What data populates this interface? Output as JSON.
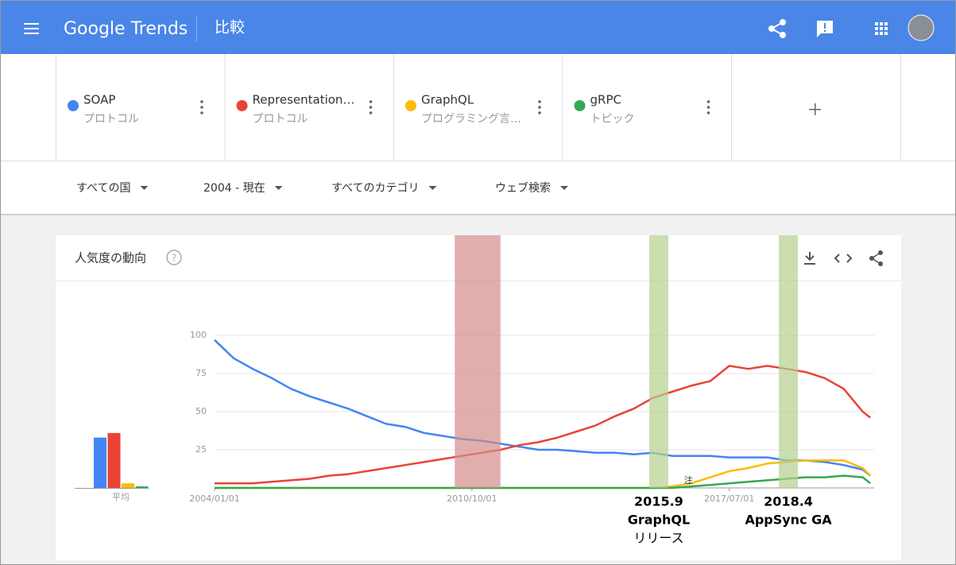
{
  "header": {
    "logo": "Google Trends",
    "page": "比較"
  },
  "term_types": [
    "プロトコル",
    "プロトコル",
    "プログラミング言…",
    "トピック"
  ],
  "filters": [
    "すべての国",
    "2004 - 現在",
    "すべてのカテゴリ",
    "ウェブ検索"
  ],
  "card_title": "人気度の動向",
  "chart_data": {
    "type": "line",
    "x": [
      2004,
      2004.5,
      2005,
      2005.5,
      2006,
      2006.5,
      2007,
      2007.5,
      2008,
      2008.5,
      2009,
      2009.5,
      2010,
      2010.5,
      2011,
      2011.5,
      2012,
      2012.5,
      2013,
      2013.5,
      2014,
      2014.5,
      2015,
      2015.5,
      2016,
      2016.5,
      2017,
      2017.5,
      2018,
      2018.5,
      2019,
      2019.5,
      2020,
      2020.5,
      2021,
      2021.2
    ],
    "series": [
      {
        "name": "SOAP",
        "color": "#4285f4",
        "values": [
          97,
          85,
          78,
          72,
          65,
          60,
          56,
          52,
          47,
          42,
          40,
          36,
          34,
          32,
          31,
          29,
          27,
          25,
          25,
          24,
          23,
          23,
          22,
          23,
          21,
          21,
          21,
          20,
          20,
          20,
          18,
          18,
          17,
          15,
          12,
          8
        ]
      },
      {
        "name": "Representation…",
        "color": "#ea4335",
        "values": [
          3,
          3,
          3,
          4,
          5,
          6,
          8,
          9,
          11,
          13,
          15,
          17,
          19,
          21,
          23,
          25,
          28,
          30,
          33,
          37,
          41,
          47,
          52,
          59,
          63,
          67,
          70,
          80,
          78,
          80,
          78,
          76,
          72,
          65,
          50,
          46
        ]
      },
      {
        "name": "GraphQL",
        "color": "#fbbc04",
        "values": [
          0,
          0,
          0,
          0,
          0,
          0,
          0,
          0,
          0,
          0,
          0,
          0,
          0,
          0,
          0,
          0,
          0,
          0,
          0,
          0,
          0,
          0,
          0,
          0,
          1,
          3,
          7,
          11,
          13,
          16,
          17,
          18,
          18,
          18,
          13,
          8
        ]
      },
      {
        "name": "gRPC",
        "color": "#34a853",
        "values": [
          0,
          0,
          0,
          0,
          0,
          0,
          0,
          0,
          0,
          0,
          0,
          0,
          0,
          0,
          0,
          0,
          0,
          0,
          0,
          0,
          0,
          0,
          0,
          0,
          0,
          1,
          2,
          3,
          4,
          5,
          6,
          7,
          7,
          8,
          7,
          3
        ]
      }
    ],
    "xlim": [
      2004,
      2021.3
    ],
    "xticks": [
      {
        "value": 2004,
        "label": "2004/01/01"
      },
      {
        "value": 2010.75,
        "label": "2010/10/01"
      },
      {
        "value": 2017.5,
        "label": "2017/07/01"
      }
    ],
    "ylim": [
      0,
      100
    ],
    "yticks": [
      25,
      50,
      75,
      100
    ],
    "grid": true,
    "averages": {
      "label": "平均",
      "values": [
        33,
        36,
        3,
        1
      ]
    },
    "note": "注",
    "bands": [
      {
        "from": 2010.3,
        "to": 2011.5,
        "color": "#d48c8c"
      },
      {
        "from": 2015.4,
        "to": 2015.9,
        "color": "#b5d08f",
        "label": [
          "2015.9",
          "GraphQL",
          "リリース"
        ]
      },
      {
        "from": 2018.8,
        "to": 2019.3,
        "color": "#b5d08f",
        "label": [
          "2018.4",
          "AppSync GA"
        ]
      }
    ]
  }
}
